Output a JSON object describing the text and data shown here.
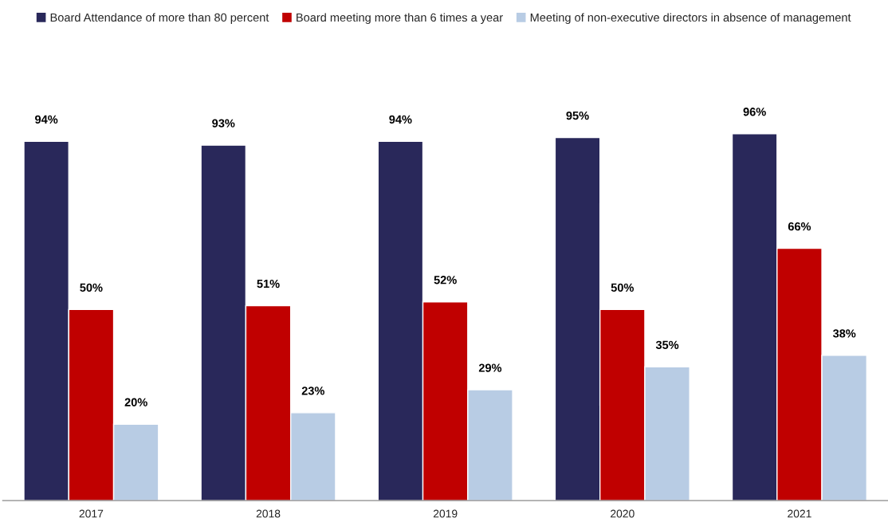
{
  "chart_data": {
    "type": "bar",
    "categories": [
      "2017",
      "2018",
      "2019",
      "2020",
      "2021"
    ],
    "series": [
      {
        "name": "Board Attendance of more than 80 percent",
        "color": "#29285a",
        "values": [
          94,
          93,
          94,
          95,
          96
        ],
        "value_labels": [
          "94%",
          "93%",
          "94%",
          "95%",
          "96%"
        ]
      },
      {
        "name": "Board meeting more than 6 times a year",
        "color": "#c00000",
        "values": [
          50,
          51,
          52,
          50,
          66
        ],
        "value_labels": [
          "50%",
          "51%",
          "52%",
          "50%",
          "66%"
        ]
      },
      {
        "name": "Meeting of non-executive directors in absence of management",
        "color": "#b8cce4",
        "values": [
          20,
          23,
          29,
          35,
          38
        ],
        "value_labels": [
          "20%",
          "23%",
          "29%",
          "35%",
          "38%"
        ]
      }
    ],
    "legend": "top",
    "grid": false,
    "tick_labels": "x"
  }
}
